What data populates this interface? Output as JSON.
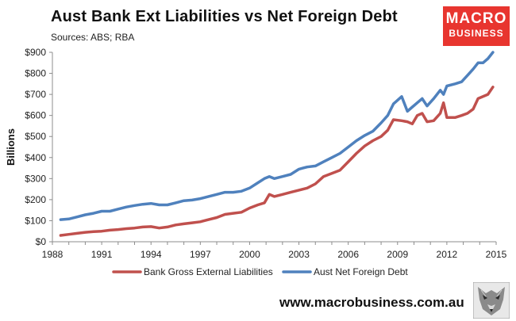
{
  "header": {
    "title": "Aust Bank Ext Liabilities vs Net Foreign Debt",
    "subtitle": "Sources: ABS; RBA"
  },
  "logo": {
    "line1": "MACRO",
    "line2": "BUSINESS",
    "color": "#e8352f"
  },
  "footer": {
    "website": "www.macrobusiness.com.au",
    "icon": "wolf-head-icon"
  },
  "chart_data": {
    "type": "line",
    "ylabel": "Billions",
    "xlabel": "",
    "xlim": [
      1988,
      2015
    ],
    "ylim": [
      0,
      900
    ],
    "x_ticks": [
      "1988",
      "1991",
      "1994",
      "1997",
      "2000",
      "2003",
      "2006",
      "2009",
      "2012",
      "2015"
    ],
    "x_tick_values": [
      1988,
      1991,
      1994,
      1997,
      2000,
      2003,
      2006,
      2009,
      2012,
      2015
    ],
    "y_ticks": [
      "$0",
      "$100",
      "$200",
      "$300",
      "$400",
      "$500",
      "$600",
      "$700",
      "$800",
      "$900"
    ],
    "y_tick_values": [
      0,
      100,
      200,
      300,
      400,
      500,
      600,
      700,
      800,
      900
    ],
    "grid": false,
    "legend_position": "bottom",
    "series": [
      {
        "name": "Bank Gross External Liabilities",
        "color": "#c0504d",
        "x": [
          1988.5,
          1989.0,
          1989.5,
          1990.0,
          1990.5,
          1991.0,
          1991.5,
          1992.0,
          1992.5,
          1993.0,
          1993.5,
          1994.0,
          1994.5,
          1995.0,
          1995.5,
          1996.0,
          1996.5,
          1997.0,
          1997.5,
          1998.0,
          1998.5,
          1999.0,
          1999.5,
          2000.0,
          2000.5,
          2000.9,
          2001.2,
          2001.5,
          2002.0,
          2002.5,
          2003.0,
          2003.5,
          2004.0,
          2004.5,
          2005.0,
          2005.5,
          2006.0,
          2006.5,
          2007.0,
          2007.5,
          2008.0,
          2008.4,
          2008.75,
          2009.25,
          2009.6,
          2009.9,
          2010.2,
          2010.5,
          2010.8,
          2011.2,
          2011.6,
          2011.8,
          2012.0,
          2012.5,
          2012.9,
          2013.25,
          2013.6,
          2013.9,
          2014.2,
          2014.5,
          2014.8
        ],
        "y": [
          30,
          35,
          40,
          45,
          48,
          50,
          55,
          58,
          62,
          65,
          70,
          72,
          65,
          70,
          80,
          85,
          90,
          95,
          105,
          115,
          130,
          135,
          140,
          160,
          175,
          185,
          225,
          215,
          225,
          235,
          245,
          255,
          275,
          310,
          325,
          340,
          380,
          420,
          455,
          480,
          500,
          530,
          580,
          575,
          570,
          560,
          600,
          610,
          570,
          575,
          610,
          660,
          590,
          590,
          600,
          610,
          630,
          680,
          690,
          700,
          735
        ]
      },
      {
        "name": "Aust Net Foreign Debt",
        "color": "#4f81bd",
        "x": [
          1988.5,
          1989.0,
          1989.5,
          1990.0,
          1990.5,
          1991.0,
          1991.5,
          1992.0,
          1992.5,
          1993.0,
          1993.5,
          1994.0,
          1994.5,
          1995.0,
          1995.5,
          1996.0,
          1996.5,
          1997.0,
          1997.5,
          1998.0,
          1998.5,
          1999.0,
          1999.5,
          2000.0,
          2000.5,
          2000.9,
          2001.2,
          2001.5,
          2002.0,
          2002.5,
          2003.0,
          2003.5,
          2004.0,
          2004.5,
          2005.0,
          2005.5,
          2006.0,
          2006.5,
          2007.0,
          2007.5,
          2008.0,
          2008.4,
          2008.75,
          2009.25,
          2009.6,
          2009.9,
          2010.2,
          2010.5,
          2010.8,
          2011.2,
          2011.6,
          2011.8,
          2012.0,
          2012.5,
          2012.9,
          2013.25,
          2013.6,
          2013.9,
          2014.2,
          2014.5,
          2014.8
        ],
        "y": [
          105,
          108,
          118,
          128,
          135,
          145,
          145,
          155,
          165,
          172,
          178,
          182,
          175,
          175,
          185,
          195,
          198,
          205,
          215,
          225,
          235,
          235,
          240,
          255,
          280,
          300,
          310,
          300,
          310,
          320,
          345,
          355,
          360,
          380,
          400,
          420,
          450,
          480,
          505,
          525,
          565,
          600,
          655,
          690,
          620,
          640,
          660,
          680,
          645,
          680,
          720,
          700,
          740,
          750,
          760,
          790,
          820,
          850,
          850,
          870,
          900
        ]
      }
    ]
  }
}
